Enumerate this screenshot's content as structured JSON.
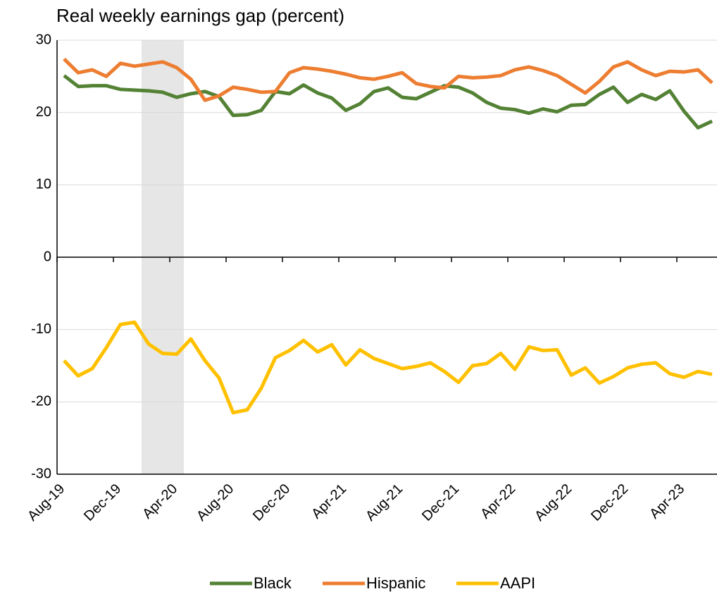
{
  "chart_data": {
    "type": "line",
    "title": "Real weekly earnings gap (percent)",
    "categories": [
      "Aug-19",
      null,
      null,
      null,
      "Dec-19",
      null,
      null,
      null,
      "Apr-20",
      null,
      null,
      null,
      "Aug-20",
      null,
      null,
      null,
      "Dec-20",
      null,
      null,
      null,
      "Apr-21",
      null,
      null,
      null,
      "Aug-21",
      null,
      null,
      null,
      "Dec-21",
      null,
      null,
      null,
      "Apr-22",
      null,
      null,
      null,
      "Aug-22",
      null,
      null,
      null,
      "Dec-22",
      null,
      null,
      null,
      "Apr-23",
      null,
      null
    ],
    "series": [
      {
        "name": "Black",
        "color": "#548235",
        "values": [
          25.1,
          23.6,
          23.7,
          23.7,
          23.2,
          23.1,
          23.0,
          22.8,
          22.1,
          22.6,
          22.9,
          22.2,
          19.6,
          19.7,
          20.3,
          22.9,
          22.6,
          23.8,
          22.7,
          22.0,
          20.3,
          21.2,
          22.9,
          23.4,
          22.1,
          21.9,
          22.8,
          23.7,
          23.5,
          22.7,
          21.4,
          20.6,
          20.4,
          19.9,
          20.5,
          20.1,
          21.0,
          21.1,
          22.5,
          23.5,
          21.4,
          22.5,
          21.8,
          23.0,
          20.2,
          17.9,
          18.8
        ]
      },
      {
        "name": "Hispanic",
        "color": "#ed7d31",
        "values": [
          27.4,
          25.5,
          25.9,
          25.0,
          26.8,
          26.4,
          26.7,
          27.0,
          26.2,
          24.6,
          21.7,
          22.3,
          23.5,
          23.2,
          22.8,
          22.9,
          25.5,
          26.2,
          26.0,
          25.7,
          25.3,
          24.8,
          24.6,
          25.0,
          25.5,
          24.0,
          23.6,
          23.4,
          25.0,
          24.8,
          24.9,
          25.1,
          25.9,
          26.3,
          25.8,
          25.1,
          23.9,
          22.7,
          24.3,
          26.3,
          27.0,
          25.9,
          25.1,
          25.7,
          25.6,
          25.9,
          24.1
        ]
      },
      {
        "name": "AAPI",
        "color": "#ffc000",
        "values": [
          -14.3,
          -16.4,
          -15.4,
          -12.5,
          -9.3,
          -9.0,
          -12.0,
          -13.3,
          -13.4,
          -11.3,
          -14.3,
          -16.7,
          -21.5,
          -21.1,
          -18.1,
          -13.9,
          -12.9,
          -11.5,
          -13.1,
          -12.1,
          -14.9,
          -12.8,
          -14.0,
          -14.7,
          -15.4,
          -15.1,
          -14.6,
          -15.8,
          -17.3,
          -15.0,
          -14.7,
          -13.3,
          -15.5,
          -12.4,
          -12.9,
          -12.8,
          -16.3,
          -15.3,
          -17.4,
          -16.5,
          -15.3,
          -14.8,
          -14.6,
          -16.1,
          -16.6,
          -15.8,
          -16.2
        ]
      }
    ],
    "ylim": [
      -30,
      30
    ],
    "yticks": [
      -30,
      -20,
      -10,
      0,
      10,
      20,
      30
    ],
    "grid": true,
    "shaded_range": [
      6,
      8
    ],
    "shade_color": "#e6e6e6",
    "legend": "bottom"
  }
}
